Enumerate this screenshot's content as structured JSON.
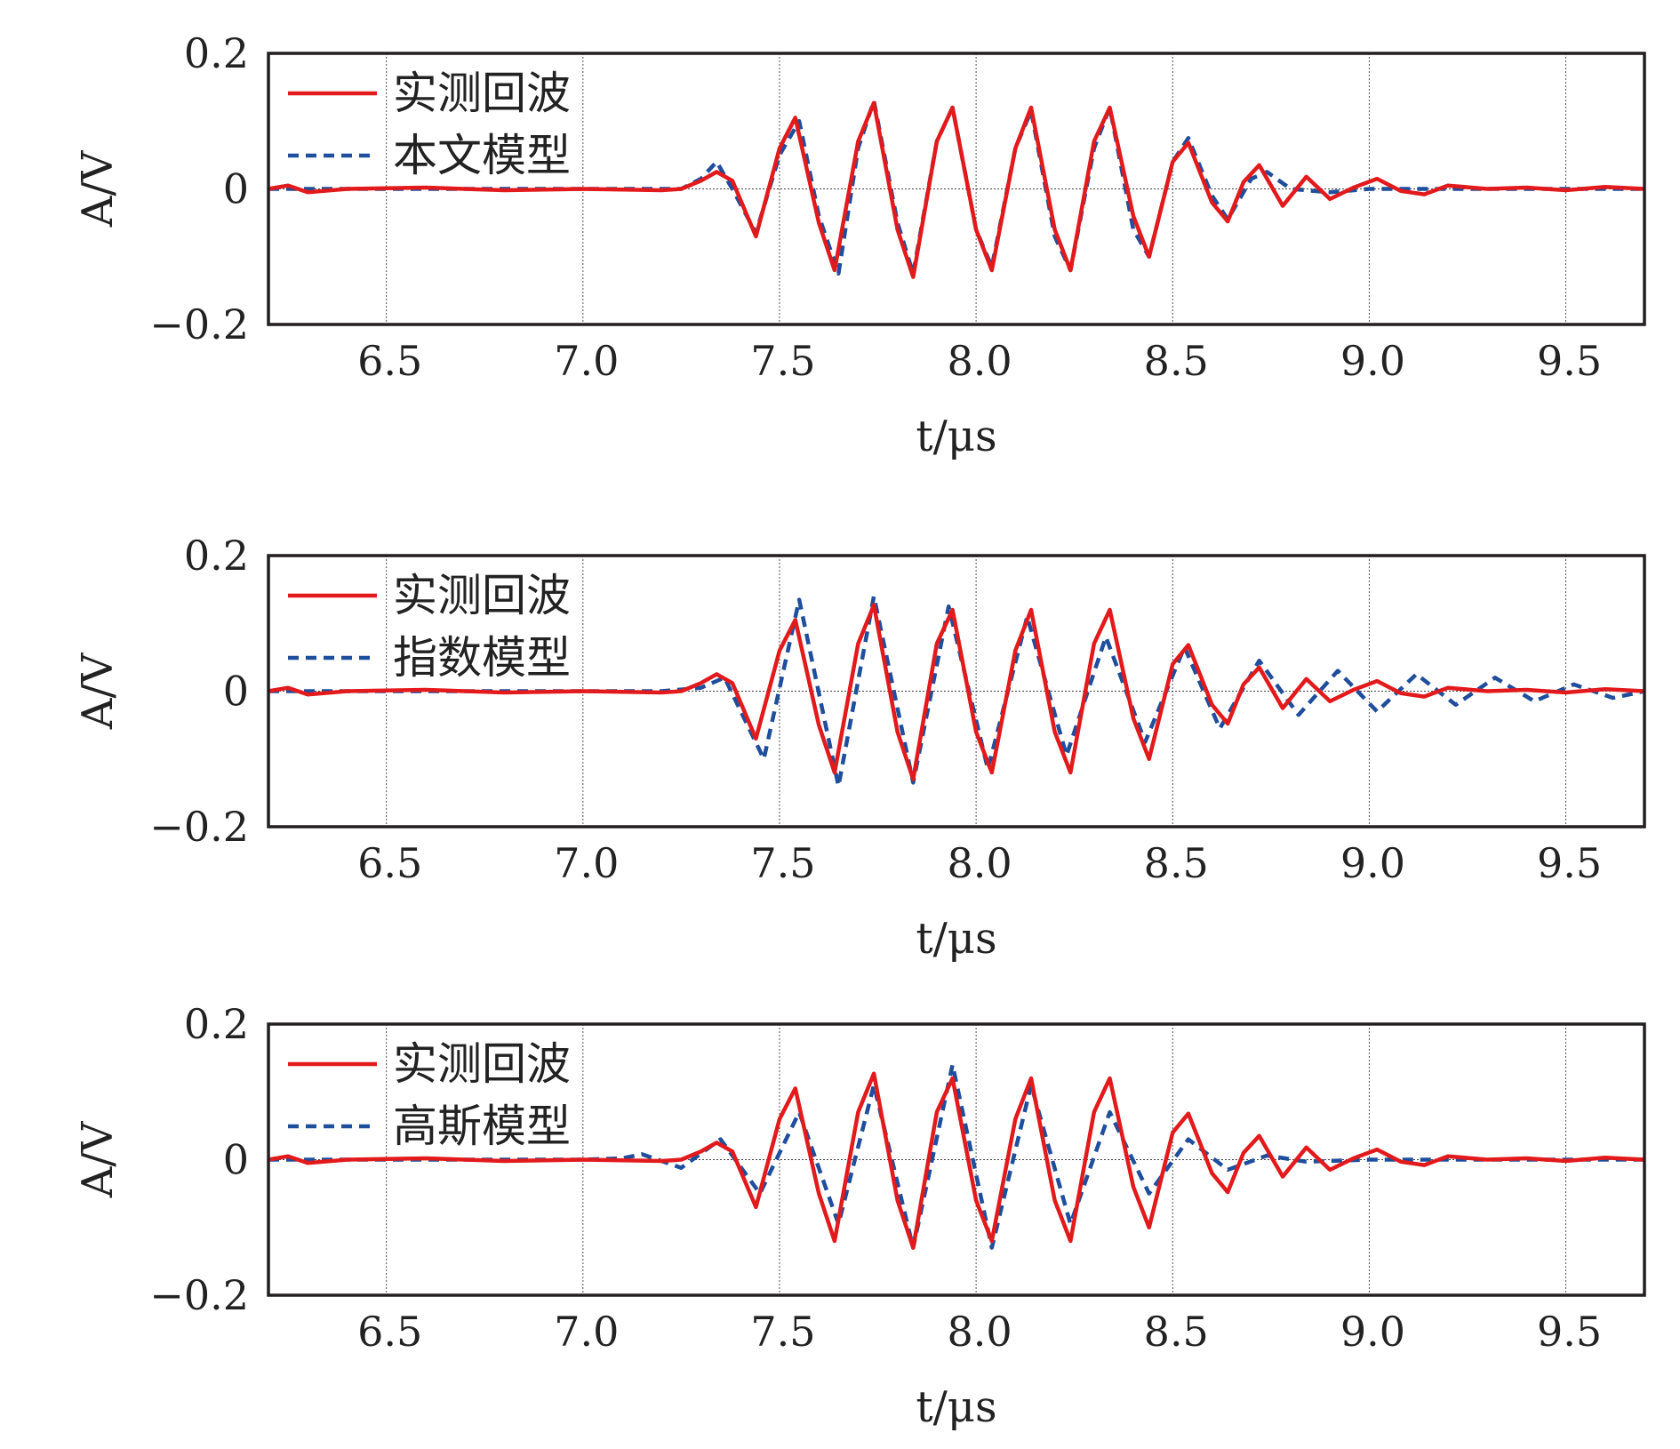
{
  "chart_data": [
    {
      "type": "line",
      "xlabel": "t/μs",
      "ylabel": "A/V",
      "xlim": [
        6.2,
        9.7
      ],
      "ylim": [
        -0.2,
        0.2
      ],
      "xticks": [
        "6.5",
        "7.0",
        "7.5",
        "8.0",
        "8.5",
        "9.0",
        "9.5"
      ],
      "yticks": [
        "0.2",
        "0",
        "−0.2"
      ],
      "grid": true,
      "legend_position": "top-left",
      "series": [
        {
          "name": "实测回波",
          "style": "solid",
          "color": "#e31a1c",
          "x": [
            6.2,
            6.25,
            6.3,
            6.4,
            6.6,
            6.8,
            7.0,
            7.2,
            7.25,
            7.3,
            7.34,
            7.38,
            7.44,
            7.5,
            7.54,
            7.6,
            7.64,
            7.7,
            7.74,
            7.8,
            7.84,
            7.9,
            7.94,
            8.0,
            8.04,
            8.1,
            8.14,
            8.2,
            8.24,
            8.3,
            8.34,
            8.4,
            8.44,
            8.5,
            8.54,
            8.6,
            8.64,
            8.68,
            8.72,
            8.78,
            8.84,
            8.9,
            8.96,
            9.02,
            9.08,
            9.14,
            9.2,
            9.3,
            9.4,
            9.5,
            9.6,
            9.7
          ],
          "y": [
            0.0,
            0.005,
            -0.005,
            0.0,
            0.002,
            -0.002,
            0.0,
            -0.002,
            0.0,
            0.012,
            0.025,
            0.012,
            -0.07,
            0.06,
            0.105,
            -0.05,
            -0.12,
            0.07,
            0.127,
            -0.06,
            -0.13,
            0.07,
            0.12,
            -0.06,
            -0.12,
            0.06,
            0.12,
            -0.06,
            -0.12,
            0.07,
            0.12,
            -0.04,
            -0.1,
            0.04,
            0.068,
            -0.02,
            -0.048,
            0.01,
            0.035,
            -0.025,
            0.018,
            -0.015,
            0.002,
            0.015,
            -0.003,
            -0.008,
            0.005,
            0.0,
            0.002,
            -0.002,
            0.003,
            0.0
          ]
        },
        {
          "name": "本文模型",
          "style": "dashed",
          "color": "#1f4e9c",
          "x": [
            6.2,
            6.3,
            6.5,
            6.8,
            7.0,
            7.2,
            7.25,
            7.3,
            7.34,
            7.38,
            7.44,
            7.5,
            7.55,
            7.6,
            7.65,
            7.7,
            7.74,
            7.8,
            7.84,
            7.9,
            7.94,
            8.0,
            8.04,
            8.1,
            8.14,
            8.2,
            8.24,
            8.3,
            8.34,
            8.4,
            8.44,
            8.5,
            8.54,
            8.6,
            8.64,
            8.7,
            8.74,
            8.8,
            8.9,
            9.0,
            9.2,
            9.4,
            9.6,
            9.7
          ],
          "y": [
            0.0,
            0.0,
            0.0,
            0.0,
            0.0,
            0.0,
            0.0,
            0.015,
            0.04,
            0.0,
            -0.065,
            0.05,
            0.1,
            -0.04,
            -0.125,
            0.06,
            0.13,
            -0.05,
            -0.125,
            0.07,
            0.12,
            -0.06,
            -0.115,
            0.06,
            0.115,
            -0.07,
            -0.12,
            0.06,
            0.12,
            -0.06,
            -0.1,
            0.04,
            0.075,
            -0.01,
            -0.045,
            0.015,
            0.025,
            0.0,
            -0.005,
            0.0,
            0.0,
            0.0,
            0.0,
            0.0
          ]
        }
      ]
    },
    {
      "type": "line",
      "xlabel": "t/μs",
      "ylabel": "A/V",
      "xlim": [
        6.2,
        9.7
      ],
      "ylim": [
        -0.2,
        0.2
      ],
      "xticks": [
        "6.5",
        "7.0",
        "7.5",
        "8.0",
        "8.5",
        "9.0",
        "9.5"
      ],
      "yticks": [
        "0.2",
        "0",
        "−0.2"
      ],
      "grid": true,
      "legend_position": "top-left",
      "series": [
        {
          "name": "实测回波",
          "style": "solid",
          "color": "#e31a1c",
          "x": [
            6.2,
            6.25,
            6.3,
            6.4,
            6.6,
            6.8,
            7.0,
            7.2,
            7.25,
            7.3,
            7.34,
            7.38,
            7.44,
            7.5,
            7.54,
            7.6,
            7.64,
            7.7,
            7.74,
            7.8,
            7.84,
            7.9,
            7.94,
            8.0,
            8.04,
            8.1,
            8.14,
            8.2,
            8.24,
            8.3,
            8.34,
            8.4,
            8.44,
            8.5,
            8.54,
            8.6,
            8.64,
            8.68,
            8.72,
            8.78,
            8.84,
            8.9,
            8.96,
            9.02,
            9.08,
            9.14,
            9.2,
            9.3,
            9.4,
            9.5,
            9.6,
            9.7
          ],
          "y": [
            0.0,
            0.005,
            -0.005,
            0.0,
            0.002,
            -0.002,
            0.0,
            -0.002,
            0.0,
            0.012,
            0.025,
            0.012,
            -0.07,
            0.06,
            0.105,
            -0.05,
            -0.12,
            0.07,
            0.127,
            -0.06,
            -0.13,
            0.07,
            0.12,
            -0.06,
            -0.12,
            0.06,
            0.12,
            -0.06,
            -0.12,
            0.07,
            0.12,
            -0.04,
            -0.1,
            0.04,
            0.068,
            -0.02,
            -0.048,
            0.01,
            0.035,
            -0.025,
            0.018,
            -0.015,
            0.002,
            0.015,
            -0.003,
            -0.008,
            0.005,
            0.0,
            0.002,
            -0.002,
            0.003,
            0.0
          ]
        },
        {
          "name": "指数模型",
          "style": "dashed",
          "color": "#1f4e9c",
          "x": [
            6.2,
            6.4,
            6.6,
            6.8,
            7.0,
            7.2,
            7.3,
            7.36,
            7.46,
            7.55,
            7.65,
            7.74,
            7.84,
            7.93,
            8.03,
            8.13,
            8.23,
            8.33,
            8.43,
            8.53,
            8.62,
            8.72,
            8.82,
            8.92,
            9.02,
            9.12,
            9.22,
            9.32,
            9.42,
            9.52,
            9.62,
            9.7
          ],
          "y": [
            0.0,
            0.0,
            0.0,
            0.0,
            0.0,
            0.0,
            0.005,
            0.02,
            -0.1,
            0.135,
            -0.14,
            0.14,
            -0.135,
            0.125,
            -0.115,
            0.11,
            -0.095,
            0.08,
            -0.075,
            0.065,
            -0.055,
            0.045,
            -0.035,
            0.03,
            -0.03,
            0.025,
            -0.02,
            0.02,
            -0.015,
            0.01,
            -0.01,
            0.0
          ]
        }
      ]
    },
    {
      "type": "line",
      "xlabel": "t/μs",
      "ylabel": "A/V",
      "xlim": [
        6.2,
        9.7
      ],
      "ylim": [
        -0.2,
        0.2
      ],
      "xticks": [
        "6.5",
        "7.0",
        "7.5",
        "8.0",
        "8.5",
        "9.0",
        "9.5"
      ],
      "yticks": [
        "0.2",
        "0",
        "−0.2"
      ],
      "grid": true,
      "legend_position": "top-left",
      "series": [
        {
          "name": "实测回波",
          "style": "solid",
          "color": "#e31a1c",
          "x": [
            6.2,
            6.25,
            6.3,
            6.4,
            6.6,
            6.8,
            7.0,
            7.2,
            7.25,
            7.3,
            7.34,
            7.38,
            7.44,
            7.5,
            7.54,
            7.6,
            7.64,
            7.7,
            7.74,
            7.8,
            7.84,
            7.9,
            7.94,
            8.0,
            8.04,
            8.1,
            8.14,
            8.2,
            8.24,
            8.3,
            8.34,
            8.4,
            8.44,
            8.5,
            8.54,
            8.6,
            8.64,
            8.68,
            8.72,
            8.78,
            8.84,
            8.9,
            8.96,
            9.02,
            9.08,
            9.14,
            9.2,
            9.3,
            9.4,
            9.5,
            9.6,
            9.7
          ],
          "y": [
            0.0,
            0.005,
            -0.005,
            0.0,
            0.002,
            -0.002,
            0.0,
            -0.002,
            0.0,
            0.012,
            0.025,
            0.012,
            -0.07,
            0.06,
            0.105,
            -0.05,
            -0.12,
            0.07,
            0.127,
            -0.06,
            -0.13,
            0.07,
            0.12,
            -0.06,
            -0.12,
            0.06,
            0.12,
            -0.06,
            -0.12,
            0.07,
            0.12,
            -0.04,
            -0.1,
            0.04,
            0.068,
            -0.02,
            -0.048,
            0.01,
            0.035,
            -0.025,
            0.018,
            -0.015,
            0.002,
            0.015,
            -0.003,
            -0.008,
            0.005,
            0.0,
            0.002,
            -0.002,
            0.003,
            0.0
          ]
        },
        {
          "name": "高斯模型",
          "style": "dashed",
          "color": "#1f4e9c",
          "x": [
            6.2,
            6.4,
            6.6,
            6.8,
            7.0,
            7.1,
            7.15,
            7.25,
            7.35,
            7.45,
            7.55,
            7.65,
            7.74,
            7.84,
            7.94,
            8.04,
            8.14,
            8.24,
            8.34,
            8.44,
            8.54,
            8.64,
            8.74,
            8.84,
            9.0,
            9.2,
            9.4,
            9.6,
            9.7
          ],
          "y": [
            0.0,
            0.0,
            0.0,
            0.0,
            0.0,
            0.002,
            0.008,
            -0.012,
            0.03,
            -0.05,
            0.07,
            -0.095,
            0.11,
            -0.13,
            0.14,
            -0.13,
            0.11,
            -0.095,
            0.07,
            -0.05,
            0.03,
            -0.015,
            0.006,
            -0.003,
            0.0,
            0.0,
            0.0,
            0.0,
            0.0
          ]
        }
      ]
    }
  ]
}
